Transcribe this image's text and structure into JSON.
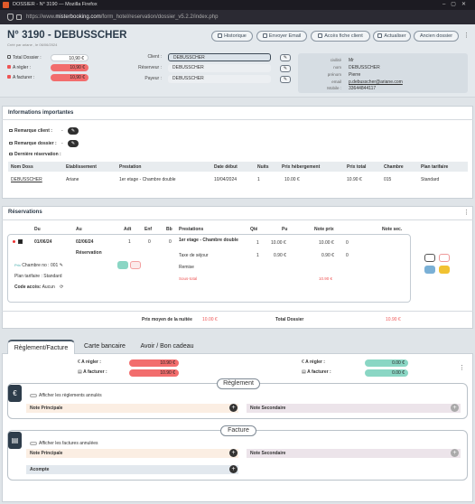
{
  "browser": {
    "title": "DOSSIER - N° 3190 — Mozilla Firefox",
    "url_prefix": "https://www.",
    "url_domain": "misterbooking.com",
    "url_path": "/form_hotel/reservation/dossier_v5.2.2/index.php"
  },
  "header": {
    "title": "N° 3190 - DEBUSSCHER",
    "subtitle": "Créé par ariane , le 06/06/2024",
    "buttons": [
      "Historique",
      "Envoyer Email",
      "Accès fiche client",
      "Actualiser",
      "Ancien dossier"
    ]
  },
  "summary": {
    "total_label": "Total Dossier :",
    "total_value": "10,90 €",
    "regler_label": "A régler :",
    "regler_value": "10,90 €",
    "facturer_label": "A facturer :",
    "facturer_value": "10,90 €"
  },
  "client": {
    "client_label": "Client :",
    "client_value": "DEBUSSCHER",
    "reserveur_label": "Réserveur :",
    "reserveur_value": "DEBUSSCHER",
    "payeur_label": "Payeur :",
    "payeur_value": "DEBUSSCHER"
  },
  "client_info": {
    "civilite_label": "civilité",
    "civilite": "Mr",
    "nom_label": "nom",
    "nom": "DEBUSSCHER",
    "prenom_label": "prénom",
    "prenom": "Pierre",
    "email_label": "email",
    "email": "p.debusscher@ariane.com",
    "mobile_label": "Mobile :",
    "mobile": "33644844117"
  },
  "important": {
    "title": "Informations importantes",
    "remarque_client": "Remarque client :",
    "remarque_client_val": "-",
    "remarque_dossier": "Remarque dossier :",
    "remarque_dossier_val": "-",
    "derniere": "Dernière réservation :",
    "headers": [
      "Nom Doss",
      "Etablissement",
      "Prestation",
      "Date début",
      "Nuits",
      "Prix hébergement",
      "Prix total",
      "Chambre",
      "Plan tarifaire"
    ],
    "row": [
      "DEBUSSCHER",
      "Ariane",
      "1er etage - Chambre double",
      "10/04/2024",
      "1",
      "10.00 €",
      "10.90 €",
      "015",
      "Standard"
    ]
  },
  "reservations": {
    "title": "Réservations",
    "headers": [
      "Du",
      "Au",
      "Adt",
      "Enf",
      "Bb",
      "Prestations",
      "Qté",
      "Pu",
      "Note prix",
      "Note sec."
    ],
    "du": "01/06/24",
    "au": "02/06/24",
    "adt": "1",
    "enf": "0",
    "bb": "0",
    "reservation_label": "Réservation",
    "prix": "Prix",
    "chambre": "Chambre no : 001",
    "plan": "Plan tarifaire : Standard",
    "code_label": "Code accès:",
    "code_value": "Aucun",
    "prest1": "1er etage - Chambre double",
    "prest1_qte": "1",
    "prest1_pu": "10.00 €",
    "prest1_total": "10.00 €",
    "prest1_extra": "0",
    "prest2": "Taxe de séjour",
    "prest2_qte": "1",
    "prest2_pu": "0.90 €",
    "prest2_total": "0.90 €",
    "prest2_extra": "0",
    "remise": "Remise",
    "sous_total": "Sous-total",
    "sous_total_val": "10.90 €",
    "moyen_label": "Prix moyen de la nuitée",
    "moyen_val": "10.00 €",
    "total_label": "Total Dossier",
    "total_val": "10.90 €"
  },
  "tabs": [
    "Règlement/Facture",
    "Carte bancaire",
    "Avoir / Bon cadeau"
  ],
  "reglement_summary": {
    "regler_label": "A régler :",
    "regler_val": "10.90 €",
    "facturer_label": "A facturer :",
    "facturer_val": "10.90 €",
    "regler2_label": "A régler :",
    "regler2_val": "0.00 €",
    "facturer2_label": "A facturer :",
    "facturer2_val": "0.00 €"
  },
  "reglement": {
    "legend": "Règlement",
    "show_label": "Afficher les règlements annulés",
    "note_principale": "Note Principale",
    "note_secondaire": "Note Secondaire"
  },
  "facture": {
    "legend": "Facture",
    "show_label": "Afficher les factures annulées",
    "note_principale": "Note Principale",
    "note_secondaire": "Note Secondaire",
    "acompte": "Acompte"
  },
  "colors": {
    "red": "#f26d6d",
    "green": "#8ad6c4",
    "dark": "#2e3d4b"
  }
}
